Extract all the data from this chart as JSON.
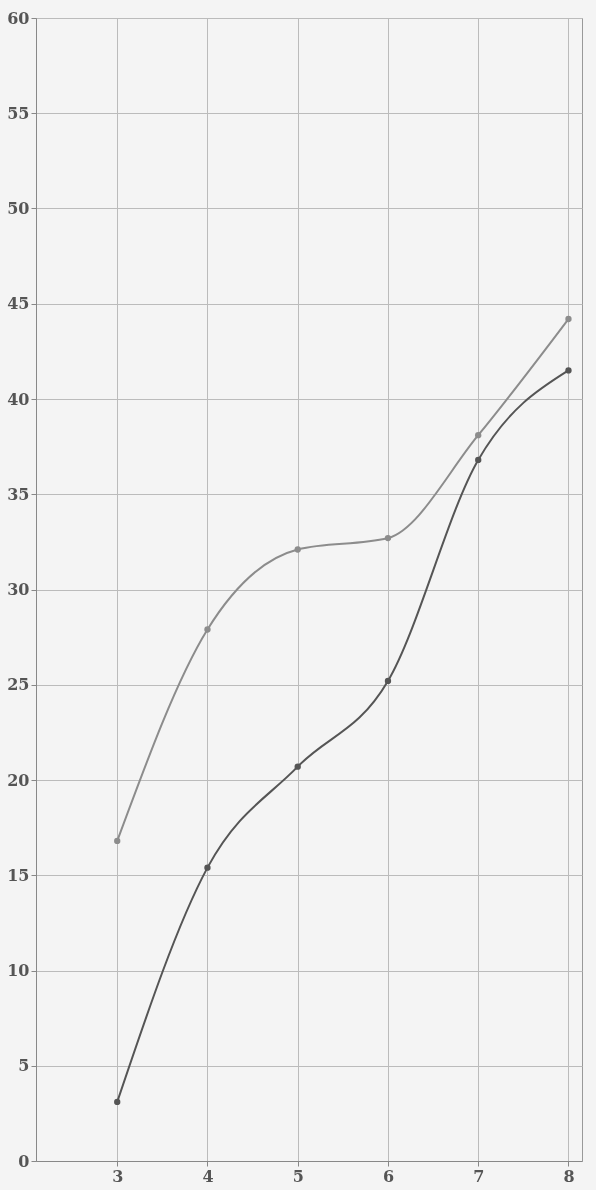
{
  "chart_data": {
    "type": "line",
    "x": [
      3,
      4,
      5,
      6,
      7,
      8
    ],
    "series": [
      {
        "color": "#8c8c8c",
        "values": [
          16.8,
          27.9,
          32.1,
          32.7,
          38.1,
          44.2
        ]
      },
      {
        "color": "#555555",
        "values": [
          3.1,
          15.4,
          20.7,
          25.2,
          36.8,
          41.5
        ]
      }
    ],
    "xlim": [
      2.1,
      8.15
    ],
    "xticks": [
      3,
      4,
      5,
      6,
      7,
      8
    ],
    "ylim": [
      0,
      60
    ],
    "yticks": [
      0,
      5,
      10,
      15,
      20,
      25,
      30,
      35,
      40,
      45,
      50,
      55,
      60
    ],
    "grid": true,
    "marker": "circle",
    "line_style": "solid"
  }
}
